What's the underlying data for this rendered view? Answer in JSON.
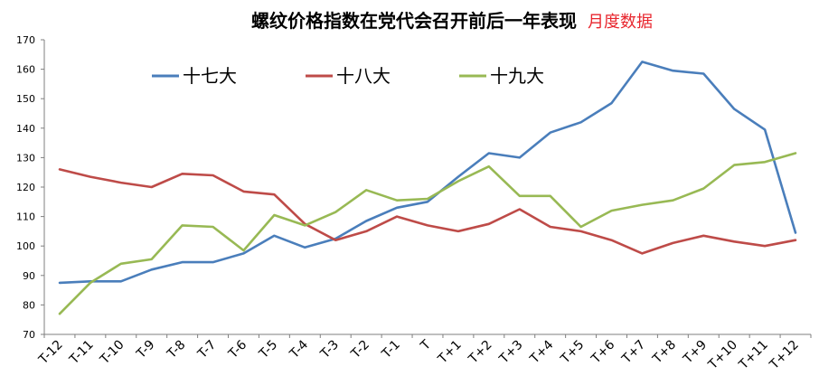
{
  "title": "螺纹价格指数在党代会召开前后一年表现",
  "subtitle": "月度数据",
  "colors": {
    "title": "#000000",
    "subtitle": "#e8262e",
    "axis": "#7f7f7f",
    "text": "#000000"
  },
  "chart_data": {
    "type": "line",
    "title": "螺纹价格指数在党代会召开前后一年表现",
    "subtitle": "月度数据",
    "xlabel": "",
    "ylabel": "",
    "ylim": [
      70,
      170
    ],
    "yticks": [
      70,
      80,
      90,
      100,
      110,
      120,
      130,
      140,
      150,
      160,
      170
    ],
    "grid": false,
    "legend_position": "top-left",
    "categories": [
      "T-12",
      "T-11",
      "T-10",
      "T-9",
      "T-8",
      "T-7",
      "T-6",
      "T-5",
      "T-4",
      "T-3",
      "T-2",
      "T-1",
      "T",
      "T+1",
      "T+2",
      "T+3",
      "T+4",
      "T+5",
      "T+6",
      "T+7",
      "T+8",
      "T+9",
      "T+10",
      "T+11",
      "T+12"
    ],
    "series": [
      {
        "name": "十七大",
        "color": "#4a7ebb",
        "values": [
          87.5,
          88,
          88,
          92,
          94.5,
          94.5,
          97.5,
          103.5,
          99.5,
          102.5,
          108.5,
          113,
          115,
          123.5,
          131.5,
          130,
          138.5,
          142,
          148.5,
          162.5,
          159.5,
          158.5,
          146.5,
          139.5,
          104.5
        ]
      },
      {
        "name": "十八大",
        "color": "#be4b48",
        "values": [
          126,
          123.5,
          121.5,
          120,
          124.5,
          124,
          118.5,
          117.5,
          107.5,
          102,
          105,
          110,
          107,
          105,
          107.5,
          112.5,
          106.5,
          105,
          102,
          97.5,
          101,
          103.5,
          101.5,
          100,
          102
        ]
      },
      {
        "name": "十九大",
        "color": "#98b954",
        "values": [
          77,
          87.5,
          94,
          95.5,
          107,
          106.5,
          98.5,
          110.5,
          107,
          111.5,
          119,
          115.5,
          116,
          122,
          127,
          117,
          117,
          106.5,
          112,
          114,
          115.5,
          119.5,
          127.5,
          128.5,
          131.5
        ]
      }
    ]
  }
}
